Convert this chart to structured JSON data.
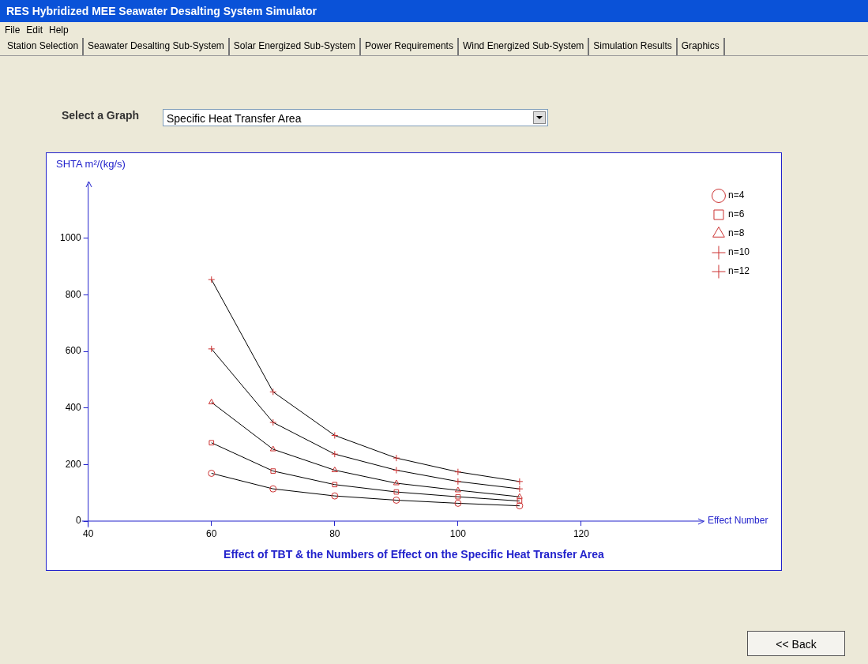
{
  "chart_data": {
    "type": "line",
    "title": "Effect of TBT & the Numbers of Effect on the Specific Heat Transfer Area",
    "xlabel": "Effect Number",
    "ylabel": "SHTA m²/(kg/s)",
    "annotations": [
      "RES Hybridized MEE Seawater Desalting System Simulator",
      "File",
      "Edit",
      "Help",
      "Station Selection",
      "Seawater Desalting Sub-System",
      "Solar Energized Sub-System",
      "Power Requirements",
      "Wind Energized Sub-System",
      "Simulation Results",
      "Graphics",
      "Select a Graph",
      "Specific Heat Transfer Area",
      "<< Back"
    ],
    "x": [
      60,
      70,
      80,
      90,
      100,
      110
    ],
    "series": [
      {
        "name": "n=4",
        "color": "#000000",
        "colors": [
          "#cc3333",
          "#cc3333",
          "#cc3333",
          "#cc3333",
          "#cc3333",
          "#cc3333"
        ],
        "marker": "circle",
        "values": [
          169,
          114,
          89,
          74,
          63,
          54
        ]
      },
      {
        "name": "n=6",
        "color": "#000000",
        "colors": [
          "#cc3333",
          "#cc3333",
          "#cc3333",
          "#cc3333",
          "#cc3333",
          "#cc3333"
        ],
        "marker": "square",
        "values": [
          277,
          177,
          129,
          103,
          86,
          71
        ]
      },
      {
        "name": "n=8",
        "color": "#000000",
        "colors": [
          "#cc3333",
          "#cc3333",
          "#cc3333",
          "#cc3333",
          "#cc3333",
          "#cc3333"
        ],
        "marker": "triangle",
        "values": [
          420,
          254,
          180,
          134,
          109,
          86
        ]
      },
      {
        "name": "n=10",
        "color": "#000000",
        "colors": [
          "#cc3333",
          "#cc3333",
          "#cc3333",
          "#cc3333",
          "#cc3333",
          "#cc3333"
        ],
        "marker": "cross",
        "values": [
          609,
          349,
          237,
          180,
          140,
          114
        ]
      },
      {
        "name": "n=12",
        "color": "#000000",
        "colors": [
          "#cc3333",
          "#cc3333",
          "#cc3333",
          "#cc3333",
          "#cc3333",
          "#cc3333"
        ],
        "marker": "cross",
        "values": [
          854,
          457,
          303,
          223,
          174,
          140
        ]
      }
    ],
    "xlim": [
      40,
      140
    ],
    "xticks": [
      40,
      60,
      80,
      100,
      120
    ],
    "ylim": [
      0,
      1200
    ],
    "yticks": [
      0,
      200,
      400,
      600,
      800,
      1000
    ],
    "grid": false,
    "legend": "top right",
    "line_style": "solid"
  }
}
